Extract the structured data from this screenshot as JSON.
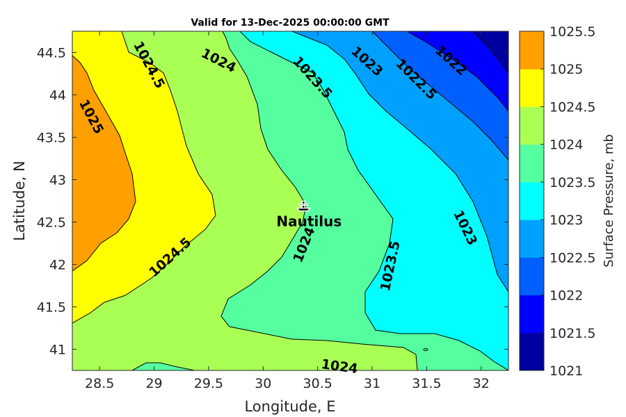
{
  "chart_data": {
    "type": "contour",
    "title": "Valid for 13-Dec-2025 00:00:00 GMT",
    "xlabel": "Longitude, E",
    "ylabel": "Latitude, N",
    "xlim": [
      28.25,
      32.25
    ],
    "ylim": [
      40.75,
      44.75
    ],
    "xticks": [
      "28.5",
      "29",
      "29.5",
      "30",
      "30.5",
      "31",
      "31.5",
      "32"
    ],
    "yticks": [
      "41",
      "41.5",
      "42",
      "42.5",
      "43",
      "43.5",
      "44",
      "44.5"
    ],
    "grid": false,
    "colorbar": {
      "label": "Surface Pressure, mb",
      "levels": [
        1021,
        1021.5,
        1022,
        1022.5,
        1023,
        1023.5,
        1024,
        1024.5,
        1025,
        1025.5
      ],
      "ticks": [
        "1021",
        "1021.5",
        "1022",
        "1022.5",
        "1023",
        "1023.5",
        "1024",
        "1024.5",
        "1025",
        "1025.5"
      ],
      "colors": [
        "#00009f",
        "#0000ff",
        "#005fff",
        "#00a0ff",
        "#00ffff",
        "#55ff9f",
        "#aaff55",
        "#ffff00",
        "#ffa000",
        "#ff5000"
      ]
    },
    "contour_labels": [
      {
        "text": "1025",
        "lon": 28.42,
        "lat": 43.74,
        "angle": 62
      },
      {
        "text": "1024.5",
        "lon": 28.95,
        "lat": 44.35,
        "angle": 62
      },
      {
        "text": "1024",
        "lon": 29.59,
        "lat": 44.4,
        "angle": 27
      },
      {
        "text": "1023.5",
        "lon": 30.45,
        "lat": 44.2,
        "angle": 48
      },
      {
        "text": "1023",
        "lon": 30.95,
        "lat": 44.39,
        "angle": 42
      },
      {
        "text": "1022.5",
        "lon": 31.4,
        "lat": 44.18,
        "angle": 45
      },
      {
        "text": "1022",
        "lon": 31.72,
        "lat": 44.4,
        "angle": 42
      },
      {
        "text": "1024.5",
        "lon": 29.15,
        "lat": 42.08,
        "angle": -42
      },
      {
        "text": "1024",
        "lon": 30.38,
        "lat": 42.23,
        "angle": -68
      },
      {
        "text": "1023.5",
        "lon": 31.17,
        "lat": 41.98,
        "angle": -78
      },
      {
        "text": "1023",
        "lon": 31.85,
        "lat": 42.43,
        "angle": 64
      },
      {
        "text": "1024",
        "lon": 30.7,
        "lat": 40.79,
        "angle": 8
      }
    ],
    "annotations": [
      {
        "text": "Nautilus",
        "lon": 30.37,
        "lat": 42.68,
        "marker": "ship"
      }
    ]
  }
}
